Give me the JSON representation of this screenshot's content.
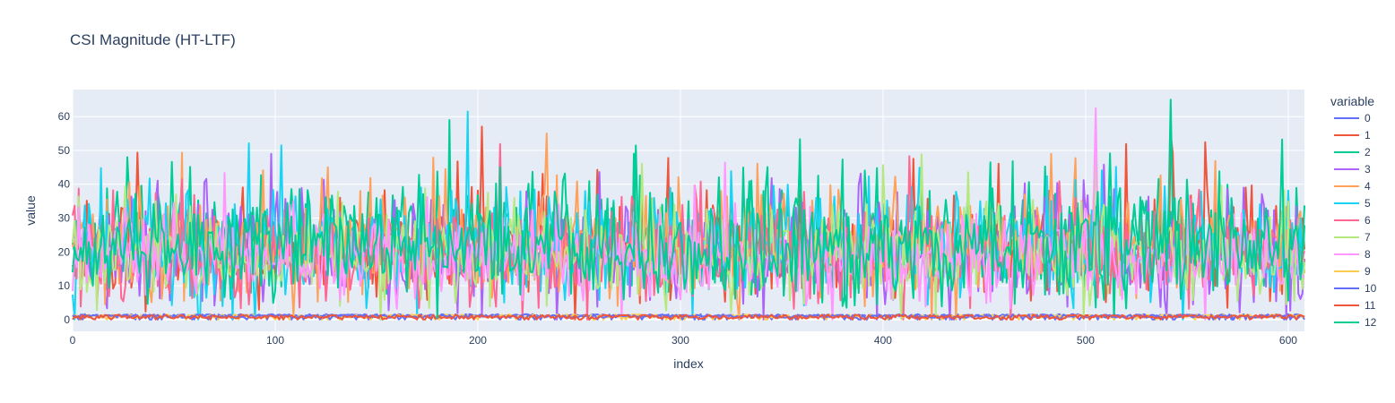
{
  "chart_data": {
    "type": "line",
    "title": "CSI Magnitude (HT-LTF)",
    "xlabel": "index",
    "ylabel": "value",
    "xlim": [
      0,
      608
    ],
    "ylim": [
      -3.5,
      68
    ],
    "x_ticks": [
      0,
      100,
      200,
      300,
      400,
      500,
      600
    ],
    "y_ticks": [
      0,
      10,
      20,
      30,
      40,
      50,
      60
    ],
    "grid": true,
    "legend": {
      "title": "variable",
      "placement": "right"
    },
    "n_points": 609,
    "series": [
      {
        "name": "0",
        "color": "#636efa",
        "mean": 1.2,
        "spread": 0.4,
        "peak_at": null,
        "peak_value": null
      },
      {
        "name": "1",
        "color": "#EF553B",
        "mean": 21,
        "spread": 7,
        "peak_at": 542,
        "peak_value": 55
      },
      {
        "name": "2",
        "color": "#00cc96",
        "mean": 22,
        "spread": 8,
        "peak_at": 186,
        "peak_value": 59
      },
      {
        "name": "3",
        "color": "#ab63fa",
        "mean": 20,
        "spread": 8,
        "peak_at": 98,
        "peak_value": 49
      },
      {
        "name": "4",
        "color": "#FFA15A",
        "mean": 22,
        "spread": 8,
        "peak_at": 234,
        "peak_value": 55
      },
      {
        "name": "5",
        "color": "#19d3f3",
        "mean": 21,
        "spread": 8,
        "peak_at": 195,
        "peak_value": 61.5
      },
      {
        "name": "6",
        "color": "#FF6692",
        "mean": 19,
        "spread": 7,
        "peak_at": null,
        "peak_value": null
      },
      {
        "name": "7",
        "color": "#B6E880",
        "mean": 18,
        "spread": 7,
        "peak_at": 505,
        "peak_value": 56
      },
      {
        "name": "8",
        "color": "#FF97FF",
        "mean": 18,
        "spread": 6,
        "peak_at": 505,
        "peak_value": 62.5
      },
      {
        "name": "9",
        "color": "#FECB52",
        "mean": 1.0,
        "spread": 0.5,
        "peak_at": null,
        "peak_value": null
      },
      {
        "name": "10",
        "color": "#636efa",
        "mean": 1.0,
        "spread": 0.5,
        "peak_at": null,
        "peak_value": null
      },
      {
        "name": "11",
        "color": "#EF553B",
        "mean": 0.8,
        "spread": 0.6,
        "peak_at": null,
        "peak_value": null
      },
      {
        "name": "12",
        "color": "#00cc96",
        "mean": 21,
        "spread": 8,
        "peak_at": 542,
        "peak_value": 65
      }
    ]
  }
}
